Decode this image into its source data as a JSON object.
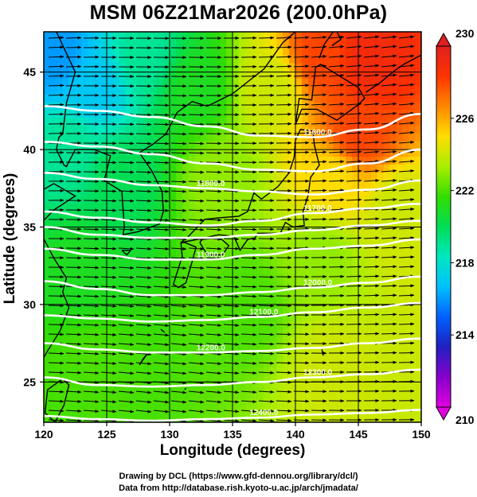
{
  "title": "MSM 06Z21Mar2026 (200.0hPa)",
  "xlabel": "Longitude (degrees)",
  "ylabel": "Latitude  (degrees)",
  "credit_line1": "Drawing by DCL (https://www.gfd-dennou.org/library/dcl/)",
  "credit_line2": "Data from http://database.rish.kyoto-u.ac.jp/arch/jmadata/",
  "chart_data": {
    "type": "heatmap",
    "title": "MSM 06Z21Mar2026 (200.0hPa)",
    "xlabel": "Longitude (degrees)",
    "ylabel": "Latitude  (degrees)",
    "xlim": [
      120,
      150
    ],
    "ylim": [
      22.4,
      47.6
    ],
    "xticks": [
      120,
      125,
      130,
      135,
      140,
      145,
      150
    ],
    "yticks": [
      25,
      30,
      35,
      40,
      45
    ],
    "grid": true,
    "colorbar": {
      "ticks": [
        210,
        214,
        218,
        222,
        226,
        230
      ],
      "range": [
        210,
        230
      ],
      "colors": [
        "#e000e0",
        "#8800cc",
        "#2020c0",
        "#0060ff",
        "#00c0ff",
        "#00e8c0",
        "#00dd55",
        "#33dd00",
        "#aaee00",
        "#ffdd00",
        "#ff8800",
        "#ff3300",
        "#e02020"
      ]
    },
    "temperature_samples": [
      {
        "lon": 121,
        "lat": 46,
        "value": 216
      },
      {
        "lon": 124,
        "lat": 44,
        "value": 217
      },
      {
        "lon": 128,
        "lat": 46,
        "value": 219
      },
      {
        "lon": 122,
        "lat": 40,
        "value": 219
      },
      {
        "lon": 126,
        "lat": 38,
        "value": 220
      },
      {
        "lon": 123,
        "lat": 32,
        "value": 221
      },
      {
        "lon": 124,
        "lat": 26,
        "value": 222
      },
      {
        "lon": 132,
        "lat": 44,
        "value": 221
      },
      {
        "lon": 134,
        "lat": 38,
        "value": 223
      },
      {
        "lon": 136,
        "lat": 30,
        "value": 222
      },
      {
        "lon": 138,
        "lat": 44,
        "value": 224
      },
      {
        "lon": 142,
        "lat": 46,
        "value": 228
      },
      {
        "lon": 146,
        "lat": 46,
        "value": 229
      },
      {
        "lon": 145,
        "lat": 41,
        "value": 228
      },
      {
        "lon": 143,
        "lat": 38,
        "value": 225
      },
      {
        "lon": 142,
        "lat": 33,
        "value": 223
      },
      {
        "lon": 148,
        "lat": 36,
        "value": 224
      },
      {
        "lon": 143,
        "lat": 26,
        "value": 224
      }
    ],
    "contours": [
      {
        "label": "11600.0",
        "lats": [
          42.8,
          42.5,
          42.1,
          41.5,
          40.9,
          40.8,
          41.3,
          42.3
        ]
      },
      {
        "label": "",
        "lats": [
          40.5,
          40.2,
          39.7,
          39.1,
          38.7,
          38.6,
          39.1,
          40.0
        ]
      },
      {
        "label": "11800.0",
        "lats": [
          38.5,
          38.1,
          37.7,
          37.5,
          37.3,
          37.1,
          37.4,
          38.0
        ]
      },
      {
        "label": "11700.0",
        "lats": [
          36.0,
          35.6,
          35.3,
          35.1,
          35.4,
          35.9,
          36.2,
          36.5
        ]
      },
      {
        "label": "",
        "lats": [
          35.0,
          34.5,
          34.3,
          34.3,
          34.5,
          34.8,
          35.1,
          35.4
        ]
      },
      {
        "label": "11900.0",
        "lats": [
          33.6,
          33.2,
          32.9,
          32.9,
          33.2,
          33.6,
          33.8,
          34.2
        ]
      },
      {
        "label": "12000.0",
        "lats": [
          31.5,
          31.0,
          30.6,
          30.6,
          30.8,
          31.1,
          31.4,
          31.8
        ]
      },
      {
        "label": "12100.0",
        "lats": [
          29.3,
          29.1,
          28.9,
          29.0,
          29.2,
          29.5,
          29.8,
          30.1
        ]
      },
      {
        "label": "12200.0",
        "lats": [
          27.5,
          27.1,
          26.9,
          26.9,
          27.0,
          27.2,
          27.5,
          27.8
        ]
      },
      {
        "label": "12300.0",
        "lats": [
          25.3,
          24.8,
          24.7,
          24.8,
          25.0,
          25.3,
          25.5,
          25.8
        ]
      },
      {
        "label": "12400.0",
        "lats": [
          22.8,
          22.6,
          22.5,
          22.6,
          22.7,
          22.9,
          23.0,
          23.2
        ]
      }
    ]
  }
}
